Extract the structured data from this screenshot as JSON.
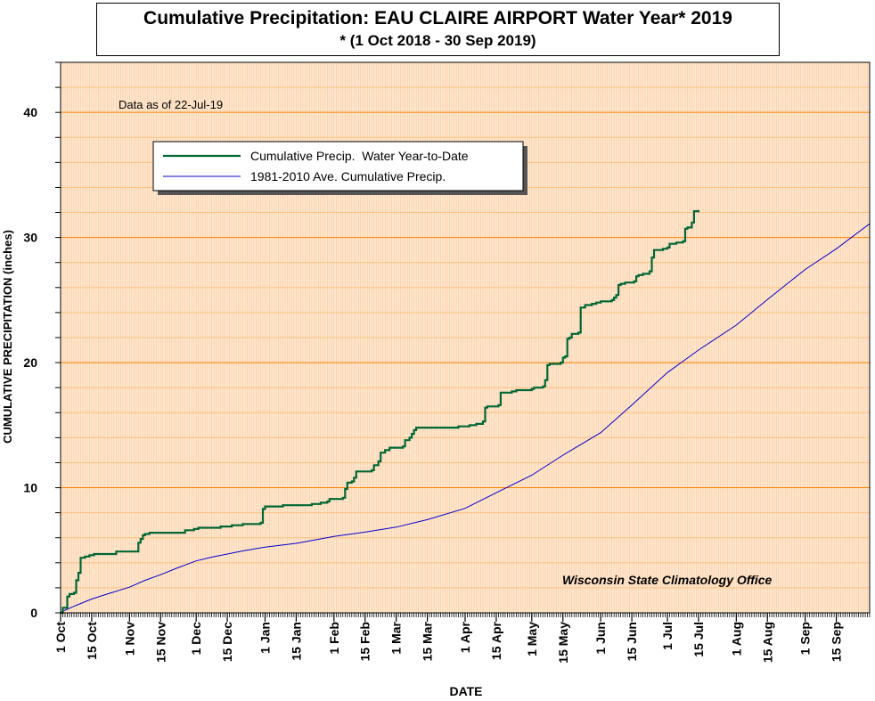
{
  "chart_data": {
    "type": "line",
    "title": "Cumulative Precipitation: EAU CLAIRE AIRPORT Water Year* 2019",
    "subtitle": "* (1 Oct 2018 - 30 Sep 2019)",
    "note": "Data as of 22-Jul-19",
    "credit": "Wisconsin State Climatology Office",
    "xlabel": "DATE",
    "ylabel": "CUMULATIVE PRECIPITATION (inches)",
    "ylim": [
      0,
      44
    ],
    "xlim": [
      "2018-10-01",
      "2019-09-30"
    ],
    "y_ticks": [
      0,
      10,
      20,
      30,
      40
    ],
    "x_tick_labels": [
      {
        "label": "1 Oct",
        "date": "2018-10-01"
      },
      {
        "label": "15 Oct",
        "date": "2018-10-15"
      },
      {
        "label": "1 Nov",
        "date": "2018-11-01"
      },
      {
        "label": "15 Nov",
        "date": "2018-11-15"
      },
      {
        "label": "1 Dec",
        "date": "2018-12-01"
      },
      {
        "label": "15 Dec",
        "date": "2018-12-15"
      },
      {
        "label": "1 Jan",
        "date": "2019-01-01"
      },
      {
        "label": "15 Jan",
        "date": "2019-01-15"
      },
      {
        "label": "1 Feb",
        "date": "2019-02-01"
      },
      {
        "label": "15 Feb",
        "date": "2019-02-15"
      },
      {
        "label": "1 Mar",
        "date": "2019-03-01"
      },
      {
        "label": "15 Mar",
        "date": "2019-03-15"
      },
      {
        "label": "1 Apr",
        "date": "2019-04-01"
      },
      {
        "label": "15 Apr",
        "date": "2019-04-15"
      },
      {
        "label": "1 May",
        "date": "2019-05-01"
      },
      {
        "label": "15 May",
        "date": "2019-05-15"
      },
      {
        "label": "1 Jun",
        "date": "2019-06-01"
      },
      {
        "label": "15 Jun",
        "date": "2019-06-15"
      },
      {
        "label": "1 Jul",
        "date": "2019-07-01"
      },
      {
        "label": "15 Jul",
        "date": "2019-07-15"
      },
      {
        "label": "1 Aug",
        "date": "2019-08-01"
      },
      {
        "label": "15 Aug",
        "date": "2019-08-15"
      },
      {
        "label": "1 Sep",
        "date": "2019-09-01"
      },
      {
        "label": "15 Sep",
        "date": "2019-09-15"
      }
    ],
    "grid": true,
    "legend_position": "upper-left",
    "colors": {
      "plot_background": "#fde9d3",
      "major_grid": "#ff8000",
      "minor_grid": "#ffc080",
      "vertical_grid": "#ffc899",
      "observed_line": "#006633",
      "normal_line": "#0000cc"
    },
    "series": [
      {
        "name": "Cumulative Precip.  Water Year-to-Date",
        "step": true,
        "points": [
          [
            "2018-10-01",
            0.0
          ],
          [
            "2018-10-02",
            0.4
          ],
          [
            "2018-10-03",
            0.4
          ],
          [
            "2018-10-04",
            1.3
          ],
          [
            "2018-10-05",
            1.5
          ],
          [
            "2018-10-06",
            1.5
          ],
          [
            "2018-10-07",
            1.6
          ],
          [
            "2018-10-08",
            2.6
          ],
          [
            "2018-10-09",
            3.2
          ],
          [
            "2018-10-10",
            4.4
          ],
          [
            "2018-10-12",
            4.5
          ],
          [
            "2018-10-14",
            4.6
          ],
          [
            "2018-10-16",
            4.7
          ],
          [
            "2018-10-25",
            4.7
          ],
          [
            "2018-10-26",
            4.9
          ],
          [
            "2018-11-04",
            4.9
          ],
          [
            "2018-11-05",
            5.6
          ],
          [
            "2018-11-06",
            5.9
          ],
          [
            "2018-11-07",
            6.2
          ],
          [
            "2018-11-08",
            6.3
          ],
          [
            "2018-11-10",
            6.4
          ],
          [
            "2018-11-25",
            6.4
          ],
          [
            "2018-11-26",
            6.6
          ],
          [
            "2018-11-30",
            6.7
          ],
          [
            "2018-12-02",
            6.8
          ],
          [
            "2018-12-12",
            6.9
          ],
          [
            "2018-12-16",
            6.9
          ],
          [
            "2018-12-17",
            7.0
          ],
          [
            "2018-12-22",
            7.1
          ],
          [
            "2018-12-29",
            7.1
          ],
          [
            "2018-12-30",
            7.2
          ],
          [
            "2018-12-31",
            8.3
          ],
          [
            "2019-01-01",
            8.5
          ],
          [
            "2019-01-08",
            8.5
          ],
          [
            "2019-01-09",
            8.6
          ],
          [
            "2019-01-21",
            8.6
          ],
          [
            "2019-01-22",
            8.7
          ],
          [
            "2019-01-26",
            8.8
          ],
          [
            "2019-01-29",
            8.9
          ],
          [
            "2019-01-30",
            9.1
          ],
          [
            "2019-02-05",
            9.2
          ],
          [
            "2019-02-06",
            9.9
          ],
          [
            "2019-02-07",
            10.4
          ],
          [
            "2019-02-09",
            10.5
          ],
          [
            "2019-02-10",
            10.8
          ],
          [
            "2019-02-11",
            11.3
          ],
          [
            "2019-02-18",
            11.4
          ],
          [
            "2019-02-19",
            11.8
          ],
          [
            "2019-02-21",
            12.1
          ],
          [
            "2019-02-22",
            12.8
          ],
          [
            "2019-02-24",
            13.0
          ],
          [
            "2019-02-26",
            13.2
          ],
          [
            "2019-03-04",
            13.3
          ],
          [
            "2019-03-05",
            13.8
          ],
          [
            "2019-03-07",
            14.0
          ],
          [
            "2019-03-08",
            14.3
          ],
          [
            "2019-03-09",
            14.6
          ],
          [
            "2019-03-10",
            14.8
          ],
          [
            "2019-03-28",
            14.8
          ],
          [
            "2019-03-29",
            14.9
          ],
          [
            "2019-04-03",
            15.0
          ],
          [
            "2019-04-06",
            15.1
          ],
          [
            "2019-04-09",
            15.3
          ],
          [
            "2019-04-10",
            16.4
          ],
          [
            "2019-04-11",
            16.5
          ],
          [
            "2019-04-16",
            16.6
          ],
          [
            "2019-04-17",
            17.6
          ],
          [
            "2019-04-22",
            17.7
          ],
          [
            "2019-04-24",
            17.8
          ],
          [
            "2019-05-01",
            17.9
          ],
          [
            "2019-05-02",
            18.0
          ],
          [
            "2019-05-06",
            18.1
          ],
          [
            "2019-05-07",
            18.6
          ],
          [
            "2019-05-08",
            19.8
          ],
          [
            "2019-05-09",
            19.9
          ],
          [
            "2019-05-14",
            20.0
          ],
          [
            "2019-05-15",
            20.4
          ],
          [
            "2019-05-16",
            20.5
          ],
          [
            "2019-05-17",
            21.9
          ],
          [
            "2019-05-18",
            22.0
          ],
          [
            "2019-05-19",
            22.3
          ],
          [
            "2019-05-22",
            22.4
          ],
          [
            "2019-05-23",
            24.4
          ],
          [
            "2019-05-25",
            24.6
          ],
          [
            "2019-05-28",
            24.7
          ],
          [
            "2019-05-30",
            24.8
          ],
          [
            "2019-06-01",
            24.9
          ],
          [
            "2019-06-06",
            25.0
          ],
          [
            "2019-06-07",
            25.2
          ],
          [
            "2019-06-08",
            25.4
          ],
          [
            "2019-06-09",
            26.2
          ],
          [
            "2019-06-10",
            26.3
          ],
          [
            "2019-06-12",
            26.4
          ],
          [
            "2019-06-16",
            26.5
          ],
          [
            "2019-06-17",
            26.9
          ],
          [
            "2019-06-18",
            27.0
          ],
          [
            "2019-06-20",
            27.1
          ],
          [
            "2019-06-23",
            27.3
          ],
          [
            "2019-06-24",
            28.4
          ],
          [
            "2019-06-25",
            29.0
          ],
          [
            "2019-06-29",
            29.1
          ],
          [
            "2019-07-01",
            29.2
          ],
          [
            "2019-07-02",
            29.5
          ],
          [
            "2019-07-05",
            29.6
          ],
          [
            "2019-07-08",
            29.7
          ],
          [
            "2019-07-09",
            30.7
          ],
          [
            "2019-07-10",
            30.8
          ],
          [
            "2019-07-12",
            31.2
          ],
          [
            "2019-07-13",
            32.1
          ],
          [
            "2019-07-15",
            32.2
          ]
        ]
      },
      {
        "name": "1981-2010 Ave. Cumulative Precip.",
        "step": false,
        "points": [
          [
            "2018-10-01",
            0.05
          ],
          [
            "2018-10-08",
            0.6
          ],
          [
            "2018-10-15",
            1.1
          ],
          [
            "2018-10-22",
            1.5
          ],
          [
            "2018-11-01",
            2.05
          ],
          [
            "2018-11-08",
            2.6
          ],
          [
            "2018-11-15",
            3.05
          ],
          [
            "2018-11-22",
            3.55
          ],
          [
            "2018-12-01",
            4.15
          ],
          [
            "2018-12-08",
            4.45
          ],
          [
            "2018-12-15",
            4.7
          ],
          [
            "2018-12-22",
            4.95
          ],
          [
            "2019-01-01",
            5.25
          ],
          [
            "2019-01-15",
            5.55
          ],
          [
            "2019-02-01",
            6.1
          ],
          [
            "2019-02-15",
            6.45
          ],
          [
            "2019-03-01",
            6.85
          ],
          [
            "2019-03-15",
            7.45
          ],
          [
            "2019-04-01",
            8.35
          ],
          [
            "2019-04-15",
            9.6
          ],
          [
            "2019-05-01",
            11.0
          ],
          [
            "2019-05-15",
            12.6
          ],
          [
            "2019-06-01",
            14.4
          ],
          [
            "2019-06-15",
            16.6
          ],
          [
            "2019-07-01",
            19.2
          ],
          [
            "2019-07-15",
            21.0
          ],
          [
            "2019-08-01",
            23.0
          ],
          [
            "2019-08-15",
            25.05
          ],
          [
            "2019-09-01",
            27.45
          ],
          [
            "2019-09-15",
            29.1
          ],
          [
            "2019-09-30",
            31.1
          ]
        ]
      }
    ]
  }
}
